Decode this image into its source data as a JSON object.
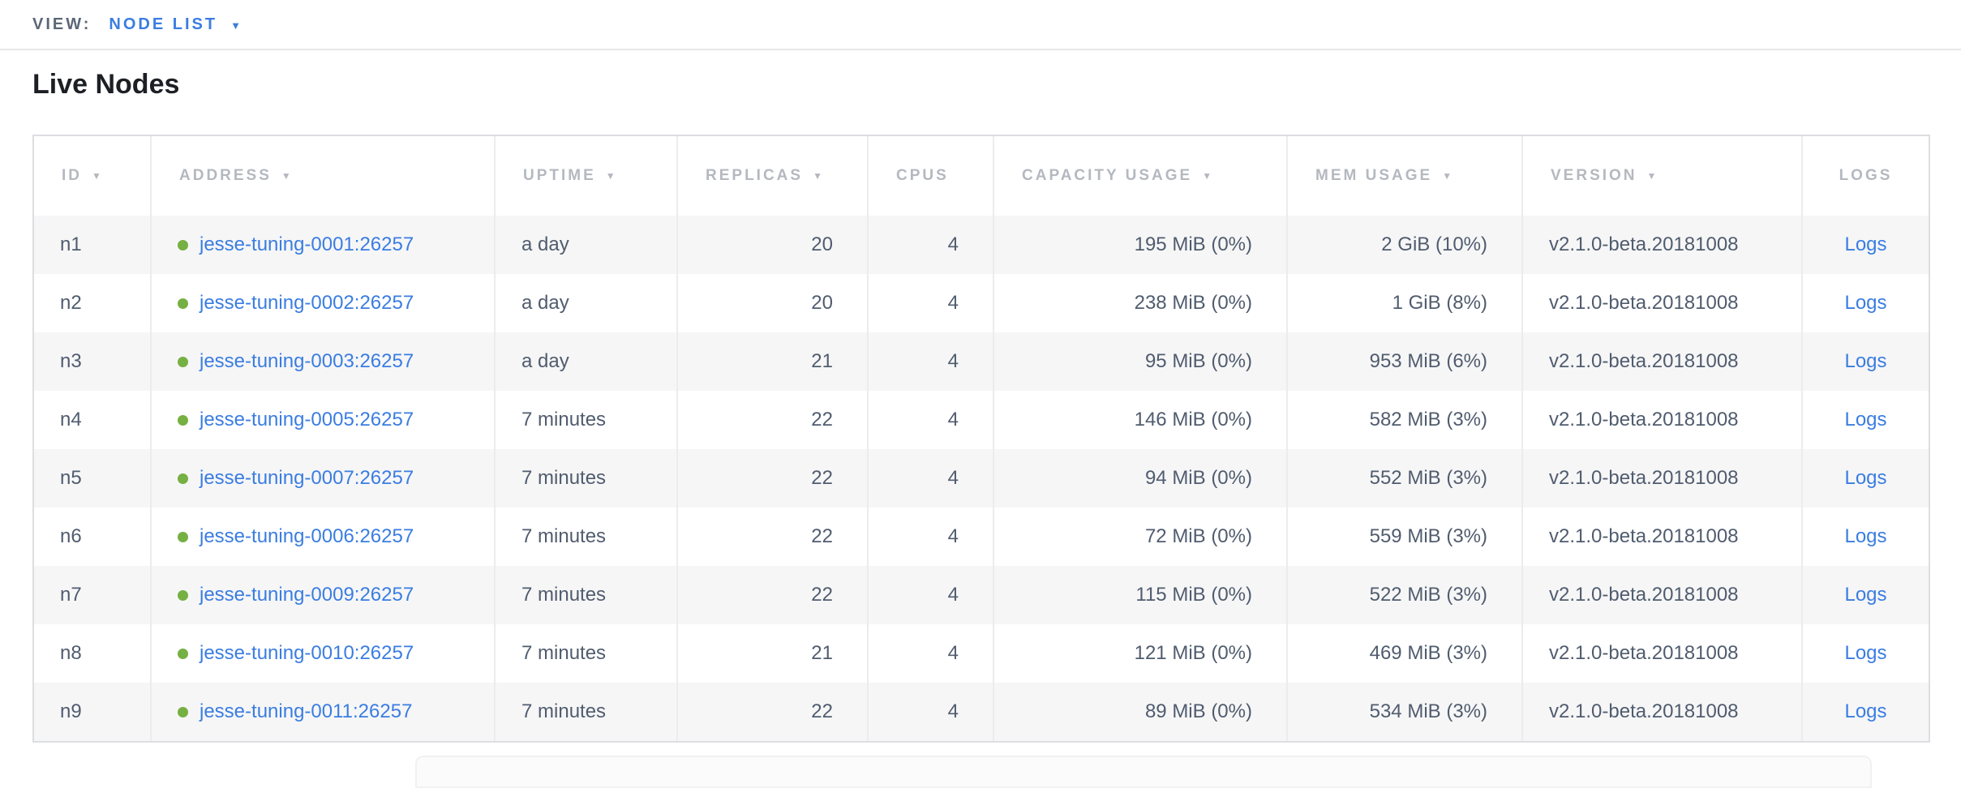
{
  "view_bar": {
    "label": "VIEW:",
    "selected": "NODE LIST"
  },
  "page_title": "Live Nodes",
  "icons": {
    "sort_arrow": "▼",
    "dropdown_arrow": "▼",
    "live_status_dot": "circle"
  },
  "colors": {
    "link_blue": "#3a7de1",
    "live_dot_green": "#76b042",
    "header_gray": "#b4b8bf",
    "body_text": "#505c6e"
  },
  "table": {
    "columns": [
      {
        "key": "id",
        "label": "ID",
        "sortable": true
      },
      {
        "key": "address",
        "label": "ADDRESS",
        "sortable": true
      },
      {
        "key": "uptime",
        "label": "UPTIME",
        "sortable": true
      },
      {
        "key": "replicas",
        "label": "REPLICAS",
        "sortable": true
      },
      {
        "key": "cpus",
        "label": "CPUS",
        "sortable": false
      },
      {
        "key": "capacity",
        "label": "CAPACITY USAGE",
        "sortable": true
      },
      {
        "key": "mem",
        "label": "MEM USAGE",
        "sortable": true
      },
      {
        "key": "version",
        "label": "VERSION",
        "sortable": true
      },
      {
        "key": "logs",
        "label": "LOGS",
        "sortable": false
      }
    ],
    "rows": [
      {
        "id": "n1",
        "address": "jesse-tuning-0001:26257",
        "uptime": "a day",
        "replicas": "20",
        "cpus": "4",
        "capacity": "195 MiB (0%)",
        "mem": "2 GiB (10%)",
        "version": "v2.1.0-beta.20181008",
        "logs": "Logs"
      },
      {
        "id": "n2",
        "address": "jesse-tuning-0002:26257",
        "uptime": "a day",
        "replicas": "20",
        "cpus": "4",
        "capacity": "238 MiB (0%)",
        "mem": "1 GiB (8%)",
        "version": "v2.1.0-beta.20181008",
        "logs": "Logs"
      },
      {
        "id": "n3",
        "address": "jesse-tuning-0003:26257",
        "uptime": "a day",
        "replicas": "21",
        "cpus": "4",
        "capacity": "95 MiB (0%)",
        "mem": "953 MiB (6%)",
        "version": "v2.1.0-beta.20181008",
        "logs": "Logs"
      },
      {
        "id": "n4",
        "address": "jesse-tuning-0005:26257",
        "uptime": "7 minutes",
        "replicas": "22",
        "cpus": "4",
        "capacity": "146 MiB (0%)",
        "mem": "582 MiB (3%)",
        "version": "v2.1.0-beta.20181008",
        "logs": "Logs"
      },
      {
        "id": "n5",
        "address": "jesse-tuning-0007:26257",
        "uptime": "7 minutes",
        "replicas": "22",
        "cpus": "4",
        "capacity": "94 MiB (0%)",
        "mem": "552 MiB (3%)",
        "version": "v2.1.0-beta.20181008",
        "logs": "Logs"
      },
      {
        "id": "n6",
        "address": "jesse-tuning-0006:26257",
        "uptime": "7 minutes",
        "replicas": "22",
        "cpus": "4",
        "capacity": "72 MiB (0%)",
        "mem": "559 MiB (3%)",
        "version": "v2.1.0-beta.20181008",
        "logs": "Logs"
      },
      {
        "id": "n7",
        "address": "jesse-tuning-0009:26257",
        "uptime": "7 minutes",
        "replicas": "22",
        "cpus": "4",
        "capacity": "115 MiB (0%)",
        "mem": "522 MiB (3%)",
        "version": "v2.1.0-beta.20181008",
        "logs": "Logs"
      },
      {
        "id": "n8",
        "address": "jesse-tuning-0010:26257",
        "uptime": "7 minutes",
        "replicas": "21",
        "cpus": "4",
        "capacity": "121 MiB (0%)",
        "mem": "469 MiB (3%)",
        "version": "v2.1.0-beta.20181008",
        "logs": "Logs"
      },
      {
        "id": "n9",
        "address": "jesse-tuning-0011:26257",
        "uptime": "7 minutes",
        "replicas": "22",
        "cpus": "4",
        "capacity": "89 MiB (0%)",
        "mem": "534 MiB (3%)",
        "version": "v2.1.0-beta.20181008",
        "logs": "Logs"
      }
    ]
  }
}
